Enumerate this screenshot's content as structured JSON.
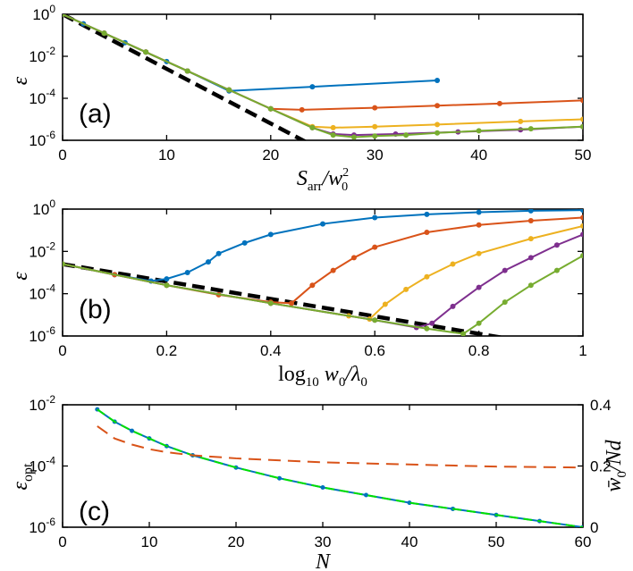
{
  "chart_data": [
    {
      "panel": "(a)",
      "type": "line",
      "title": "",
      "xlabel": "S_arr/w_0^2",
      "ylabel": "ε",
      "xlim": [
        0,
        50
      ],
      "ylim_log10": [
        -6,
        0
      ],
      "xticks": [
        "0",
        "10",
        "20",
        "30",
        "40",
        "50"
      ],
      "yticks": [
        {
          "base": "10",
          "exp": "0"
        },
        {
          "base": "10",
          "exp": "-2"
        },
        {
          "base": "10",
          "exp": "-4"
        },
        {
          "base": "10",
          "exp": "-6"
        }
      ],
      "series": [
        {
          "name": "blue",
          "color": "#0072BD",
          "x": [
            0,
            2,
            4,
            6,
            8,
            10,
            12,
            16,
            24,
            36
          ],
          "log10_y": [
            0,
            -0.45,
            -0.9,
            -1.35,
            -1.8,
            -2.25,
            -2.7,
            -3.65,
            -3.45,
            -3.15
          ]
        },
        {
          "name": "red",
          "color": "#D95319",
          "x": [
            0,
            4,
            8,
            12,
            16,
            20,
            23,
            30,
            36,
            42,
            50
          ],
          "log10_y": [
            0,
            -0.9,
            -1.8,
            -2.7,
            -3.6,
            -4.5,
            -4.55,
            -4.45,
            -4.35,
            -4.25,
            -4.1
          ]
        },
        {
          "name": "yellow",
          "color": "#EDB120",
          "x": [
            0,
            4,
            8,
            12,
            16,
            20,
            24,
            26,
            30,
            36,
            44,
            50
          ],
          "log10_y": [
            0,
            -0.9,
            -1.8,
            -2.7,
            -3.6,
            -4.5,
            -5.35,
            -5.4,
            -5.35,
            -5.25,
            -5.1,
            -5.0
          ]
        },
        {
          "name": "purple",
          "color": "#7E2F8E",
          "x": [
            0,
            4,
            8,
            12,
            16,
            20,
            24,
            26,
            28,
            32,
            38,
            44,
            50
          ],
          "log10_y": [
            0,
            -0.9,
            -1.8,
            -2.7,
            -3.6,
            -4.5,
            -5.4,
            -5.7,
            -5.75,
            -5.7,
            -5.6,
            -5.5,
            -5.35
          ]
        },
        {
          "name": "green",
          "color": "#77AC30",
          "x": [
            0,
            4,
            8,
            12,
            16,
            20,
            24,
            26,
            28,
            30,
            33,
            36,
            40,
            45,
            50
          ],
          "log10_y": [
            0,
            -0.9,
            -1.8,
            -2.7,
            -3.6,
            -4.5,
            -5.4,
            -5.75,
            -5.85,
            -5.8,
            -5.75,
            -5.65,
            -5.55,
            -5.45,
            -5.35
          ]
        }
      ],
      "reference": {
        "style": "dashed",
        "color": "#000000",
        "x": [
          0,
          25
        ],
        "log10_y": [
          0,
          -6.5
        ]
      }
    },
    {
      "panel": "(b)",
      "type": "line",
      "title": "",
      "xlabel": "log_10 w_0/λ_0",
      "ylabel": "ε",
      "xlim": [
        0,
        1
      ],
      "ylim_log10": [
        -6,
        0
      ],
      "xticks": [
        "0",
        "0.2",
        "0.4",
        "0.6",
        "0.8",
        "1"
      ],
      "yticks": [
        {
          "base": "10",
          "exp": "0"
        },
        {
          "base": "10",
          "exp": "-2"
        },
        {
          "base": "10",
          "exp": "-4"
        },
        {
          "base": "10",
          "exp": "-6"
        }
      ],
      "series": [
        {
          "name": "blue",
          "color": "#0072BD",
          "x": [
            0,
            0.1,
            0.17,
            0.2,
            0.24,
            0.28,
            0.3,
            0.35,
            0.4,
            0.5,
            0.6,
            0.7,
            0.8,
            0.9,
            1.0
          ],
          "log10_y": [
            -2.6,
            -3.1,
            -3.4,
            -3.3,
            -3.0,
            -2.5,
            -2.1,
            -1.6,
            -1.2,
            -0.7,
            -0.4,
            -0.25,
            -0.15,
            -0.08,
            -0.05
          ]
        },
        {
          "name": "red",
          "color": "#D95319",
          "x": [
            0,
            0.1,
            0.2,
            0.3,
            0.4,
            0.44,
            0.48,
            0.52,
            0.56,
            0.6,
            0.7,
            0.8,
            0.9,
            1.0
          ],
          "log10_y": [
            -2.6,
            -3.1,
            -3.6,
            -4.05,
            -4.4,
            -4.45,
            -3.6,
            -2.9,
            -2.3,
            -1.8,
            -1.1,
            -0.75,
            -0.55,
            -0.4
          ]
        },
        {
          "name": "yellow",
          "color": "#EDB120",
          "x": [
            0,
            0.2,
            0.4,
            0.55,
            0.59,
            0.62,
            0.66,
            0.7,
            0.75,
            0.8,
            0.9,
            1.0
          ],
          "log10_y": [
            -2.6,
            -3.6,
            -4.45,
            -5.05,
            -5.2,
            -4.5,
            -3.8,
            -3.2,
            -2.6,
            -2.1,
            -1.4,
            -0.8
          ]
        },
        {
          "name": "purple",
          "color": "#7E2F8E",
          "x": [
            0,
            0.2,
            0.4,
            0.6,
            0.68,
            0.71,
            0.75,
            0.8,
            0.85,
            0.9,
            0.95,
            1.0
          ],
          "log10_y": [
            -2.6,
            -3.6,
            -4.45,
            -5.25,
            -5.6,
            -5.4,
            -4.6,
            -3.7,
            -2.9,
            -2.3,
            -1.7,
            -1.2
          ]
        },
        {
          "name": "green",
          "color": "#77AC30",
          "x": [
            0,
            0.2,
            0.4,
            0.6,
            0.7,
            0.77,
            0.8,
            0.85,
            0.9,
            0.95,
            1.0
          ],
          "log10_y": [
            -2.6,
            -3.6,
            -4.45,
            -5.25,
            -5.65,
            -5.9,
            -5.4,
            -4.4,
            -3.6,
            -2.9,
            -2.2
          ]
        }
      ],
      "reference": {
        "style": "dashed",
        "color": "#000000",
        "x": [
          0,
          0.85
        ],
        "log10_y": [
          -2.6,
          -6.1
        ]
      }
    },
    {
      "panel": "(c)",
      "type": "line",
      "title": "",
      "xlabel": "N",
      "ylabel": "ε_opt",
      "ylabel_right": "w̄_0/Nd",
      "xlim": [
        0,
        60
      ],
      "ylim_log10": [
        -6,
        -2
      ],
      "ylim_right": [
        0,
        0.4
      ],
      "xticks": [
        "0",
        "10",
        "20",
        "30",
        "40",
        "50",
        "60"
      ],
      "yticks": [
        {
          "base": "10",
          "exp": "-2"
        },
        {
          "base": "10",
          "exp": "-4"
        },
        {
          "base": "10",
          "exp": "-6"
        }
      ],
      "yticks_right": [
        "0",
        "0.2",
        "0.4"
      ],
      "series": [
        {
          "name": "ε_opt",
          "color": "#0072BD",
          "axis": "left",
          "x": [
            4,
            6,
            8,
            10,
            12,
            15,
            20,
            25,
            30,
            35,
            40,
            45,
            50,
            55,
            60
          ],
          "log10_y": [
            -2.15,
            -2.55,
            -2.85,
            -3.1,
            -3.35,
            -3.65,
            -4.05,
            -4.4,
            -4.7,
            -4.95,
            -5.2,
            -5.4,
            -5.6,
            -5.8,
            -6.0
          ]
        },
        {
          "name": "fit",
          "color": "#00E000",
          "axis": "left",
          "style": "dashed",
          "x": [
            4,
            6,
            8,
            10,
            12,
            15,
            20,
            25,
            30,
            35,
            40,
            45,
            50,
            55,
            60
          ],
          "log10_y": [
            -2.15,
            -2.55,
            -2.85,
            -3.1,
            -3.35,
            -3.65,
            -4.05,
            -4.4,
            -4.7,
            -4.95,
            -5.2,
            -5.4,
            -5.6,
            -5.8,
            -6.0
          ]
        },
        {
          "name": "w̄_0/Nd",
          "color": "#D95319",
          "axis": "right",
          "style": "dashed",
          "x": [
            4,
            6,
            8,
            10,
            12,
            15,
            20,
            30,
            40,
            50,
            60
          ],
          "y": [
            0.33,
            0.29,
            0.27,
            0.255,
            0.245,
            0.235,
            0.225,
            0.212,
            0.205,
            0.198,
            0.195
          ]
        }
      ]
    }
  ],
  "colors": {
    "left_axis_label": "#0072BD",
    "right_axis_label": "#D95319"
  }
}
